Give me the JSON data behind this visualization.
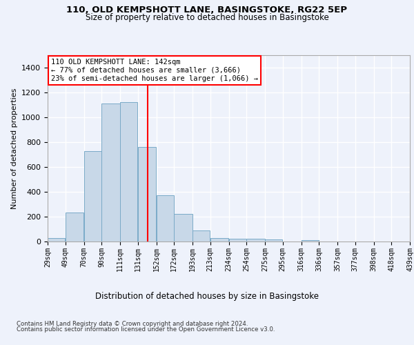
{
  "title1": "110, OLD KEMPSHOTT LANE, BASINGSTOKE, RG22 5EP",
  "title2": "Size of property relative to detached houses in Basingstoke",
  "xlabel": "Distribution of detached houses by size in Basingstoke",
  "ylabel": "Number of detached properties",
  "footnote1": "Contains HM Land Registry data © Crown copyright and database right 2024.",
  "footnote2": "Contains public sector information licensed under the Open Government Licence v3.0.",
  "annotation_line1": "110 OLD KEMPSHOTT LANE: 142sqm",
  "annotation_line2": "← 77% of detached houses are smaller (3,666)",
  "annotation_line3": "23% of semi-detached houses are larger (1,066) →",
  "bar_color": "#c8d8e8",
  "bar_edge_color": "#7aaac8",
  "vline_x": 142,
  "vline_color": "red",
  "bins": [
    29,
    49,
    70,
    90,
    111,
    131,
    152,
    172,
    193,
    213,
    234,
    254,
    275,
    295,
    316,
    336,
    357,
    377,
    398,
    418,
    439
  ],
  "bin_labels": [
    "29sqm",
    "49sqm",
    "70sqm",
    "90sqm",
    "111sqm",
    "131sqm",
    "152sqm",
    "172sqm",
    "193sqm",
    "213sqm",
    "234sqm",
    "254sqm",
    "275sqm",
    "295sqm",
    "316sqm",
    "336sqm",
    "357sqm",
    "377sqm",
    "398sqm",
    "418sqm",
    "439sqm"
  ],
  "bar_heights": [
    30,
    235,
    730,
    1110,
    1120,
    760,
    375,
    225,
    90,
    30,
    25,
    20,
    15,
    0,
    10,
    0,
    0,
    0,
    0,
    0
  ],
  "ylim": [
    0,
    1500
  ],
  "background_color": "#eef2fb",
  "axes_background": "#eef2fb",
  "grid_color": "#ffffff"
}
